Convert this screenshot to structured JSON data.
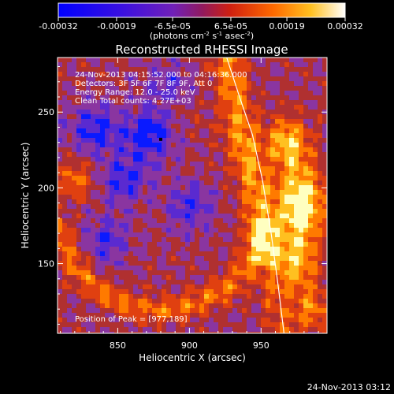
{
  "colorbar": {
    "ticks": [
      "-0.00032",
      "-0.00019",
      "-6.5e-05",
      "6.5e-05",
      "0.00019",
      "0.00032"
    ],
    "unit_main": "(photons cm",
    "unit_sup1": "-2",
    "unit_mid": " s",
    "unit_sup2": "-1",
    "unit_end": " asec",
    "unit_sup3": "-2",
    "unit_close": ")"
  },
  "chart_data": {
    "type": "heatmap",
    "title": "Reconstructed RHESSI Image",
    "xlabel": "Heliocentric X (arcsec)",
    "ylabel": "Heliocentric Y (arcsec)",
    "xlim": [
      808,
      996
    ],
    "ylim": [
      104,
      286
    ],
    "x_ticks": [
      850,
      900,
      950
    ],
    "y_ticks": [
      150,
      200,
      250
    ],
    "x_tick_labels": [
      "850",
      "900",
      "950"
    ],
    "y_tick_labels": [
      "150",
      "200",
      "250"
    ],
    "value_range": [
      -0.00032,
      0.00032
    ],
    "colormap_colors": [
      "#0a1aff",
      "#5a2ad0",
      "#8a35a0",
      "#b03030",
      "#e04010",
      "#ff7a00",
      "#ffc020",
      "#ffffc0"
    ],
    "peak": [
      977,
      189
    ],
    "peak_marker": [
      880,
      232
    ],
    "limb_curve": [
      [
        926,
        286
      ],
      [
        935,
        260
      ],
      [
        944,
        235
      ],
      [
        951,
        205
      ],
      [
        957,
        170
      ],
      [
        962,
        135
      ],
      [
        966,
        104
      ]
    ],
    "info_lines": [
      "24-Nov-2013 04:15:52.000 to 04:16:36.000",
      "Detectors: 3F 5F 6F 7F 8F 9F, Att 0",
      "Energy Range: 12.0 - 25.0 keV",
      "Clean    Total counts: 4.27E+03"
    ],
    "peak_label": "Position of Peak = [977,189]"
  },
  "footer": {
    "timestamp": "24-Nov-2013 03:12"
  }
}
